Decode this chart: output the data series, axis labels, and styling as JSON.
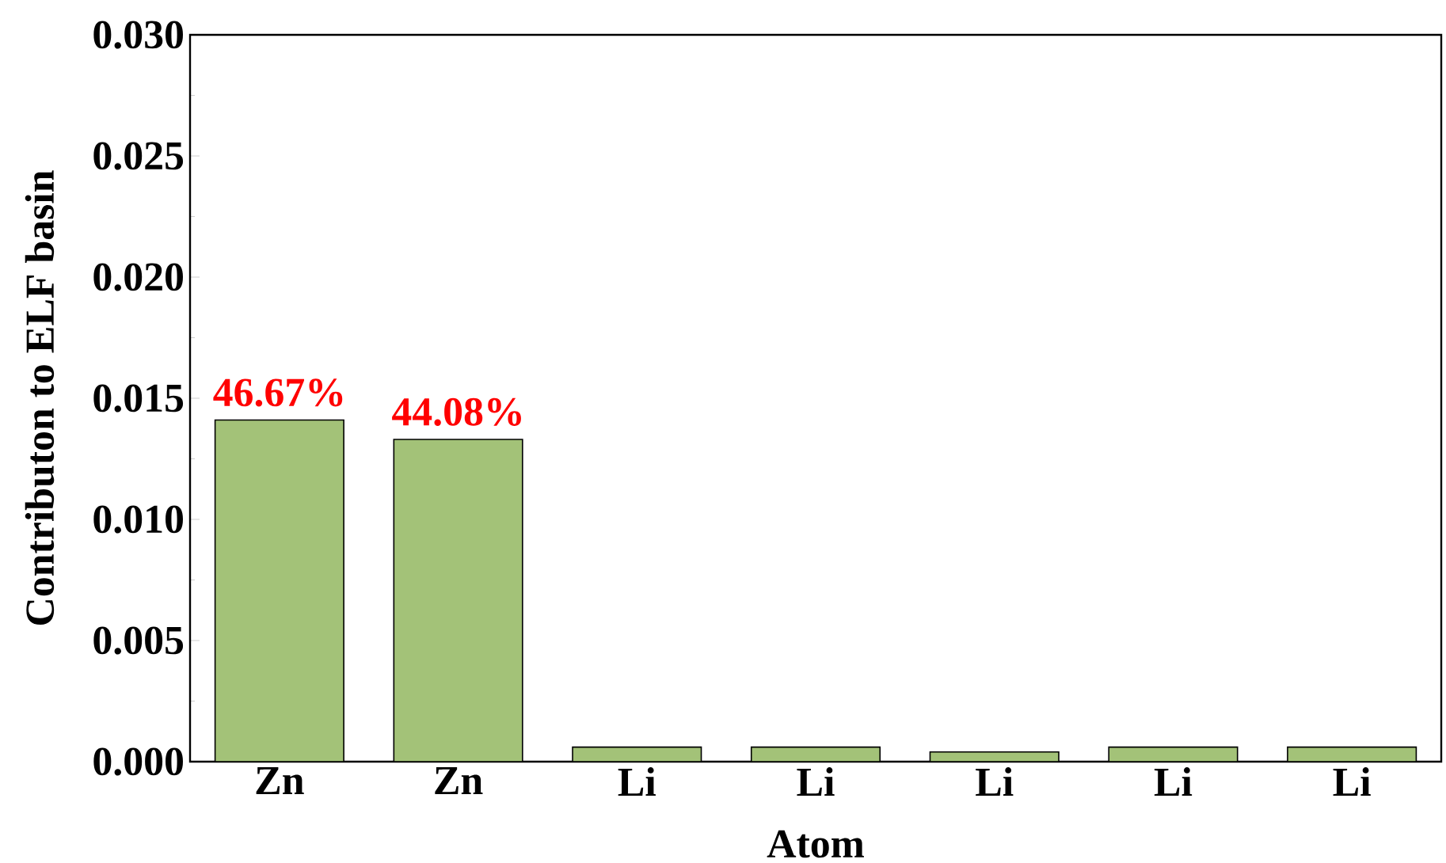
{
  "chart_data": {
    "type": "bar",
    "xlabel": "Atom",
    "ylabel": "Contributon to ELF basin",
    "categories": [
      "Zn",
      "Zn",
      "Li",
      "Li",
      "Li",
      "Li",
      "Li"
    ],
    "values": [
      0.0141,
      0.0133,
      0.0006,
      0.0006,
      0.0004,
      0.0006,
      0.0006
    ],
    "annotations": [
      "46.67%",
      "44.08%"
    ],
    "color": "#a3c278",
    "ylim": [
      0,
      0.03
    ],
    "yticks": [
      {
        "value": 0,
        "label": "0.000"
      },
      {
        "value": 0.005,
        "label": "0.005"
      },
      {
        "value": 0.01,
        "label": "0.010"
      },
      {
        "value": 0.015,
        "label": "0.015"
      },
      {
        "value": 0.02,
        "label": "0.020"
      },
      {
        "value": 0.025,
        "label": "0.025"
      },
      {
        "value": 0.03,
        "label": "0.030"
      }
    ]
  }
}
